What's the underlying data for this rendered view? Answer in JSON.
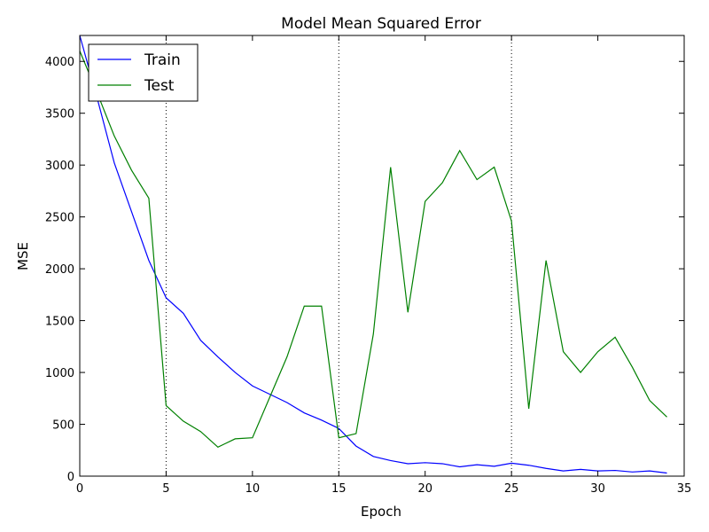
{
  "chart_data": {
    "type": "line",
    "title": "Model Mean Squared Error",
    "xlabel": "Epoch",
    "ylabel": "MSE",
    "xlim": [
      0,
      35
    ],
    "ylim": [
      0,
      4250
    ],
    "xticks": [
      0,
      5,
      10,
      15,
      20,
      25,
      30,
      35
    ],
    "yticks": [
      0,
      500,
      1000,
      1500,
      2000,
      2500,
      3000,
      3500,
      4000
    ],
    "vlines": [
      5,
      15,
      25
    ],
    "grid": false,
    "legend": "top-left",
    "series": [
      {
        "name": "Train",
        "color": "#0000ff",
        "x": [
          0,
          1,
          2,
          3,
          4,
          5,
          6,
          7,
          8,
          9,
          10,
          11,
          12,
          13,
          14,
          15,
          16,
          17,
          18,
          19,
          20,
          21,
          22,
          23,
          24,
          25,
          26,
          27,
          28,
          29,
          30,
          31,
          32,
          33,
          34
        ],
        "values": [
          4250,
          3650,
          3020,
          2550,
          2080,
          1720,
          1570,
          1310,
          1150,
          1000,
          870,
          790,
          710,
          610,
          540,
          460,
          290,
          190,
          150,
          120,
          130,
          120,
          90,
          110,
          95,
          125,
          105,
          75,
          50,
          65,
          50,
          55,
          40,
          50,
          30
        ]
      },
      {
        "name": "Test",
        "color": "#008000",
        "x": [
          0,
          1,
          2,
          3,
          4,
          5,
          6,
          7,
          8,
          9,
          10,
          11,
          12,
          13,
          14,
          15,
          16,
          17,
          18,
          19,
          20,
          21,
          22,
          23,
          24,
          25,
          26,
          27,
          28,
          29,
          30,
          31,
          32,
          33,
          34
        ],
        "values": [
          4100,
          3700,
          3280,
          2950,
          2680,
          680,
          530,
          430,
          280,
          360,
          370,
          760,
          1150,
          1640,
          1640,
          370,
          410,
          1370,
          2980,
          1580,
          2650,
          2830,
          3140,
          2860,
          2980,
          2460,
          650,
          2080,
          1200,
          1000,
          1200,
          1340,
          1050,
          730,
          570
        ]
      }
    ]
  }
}
